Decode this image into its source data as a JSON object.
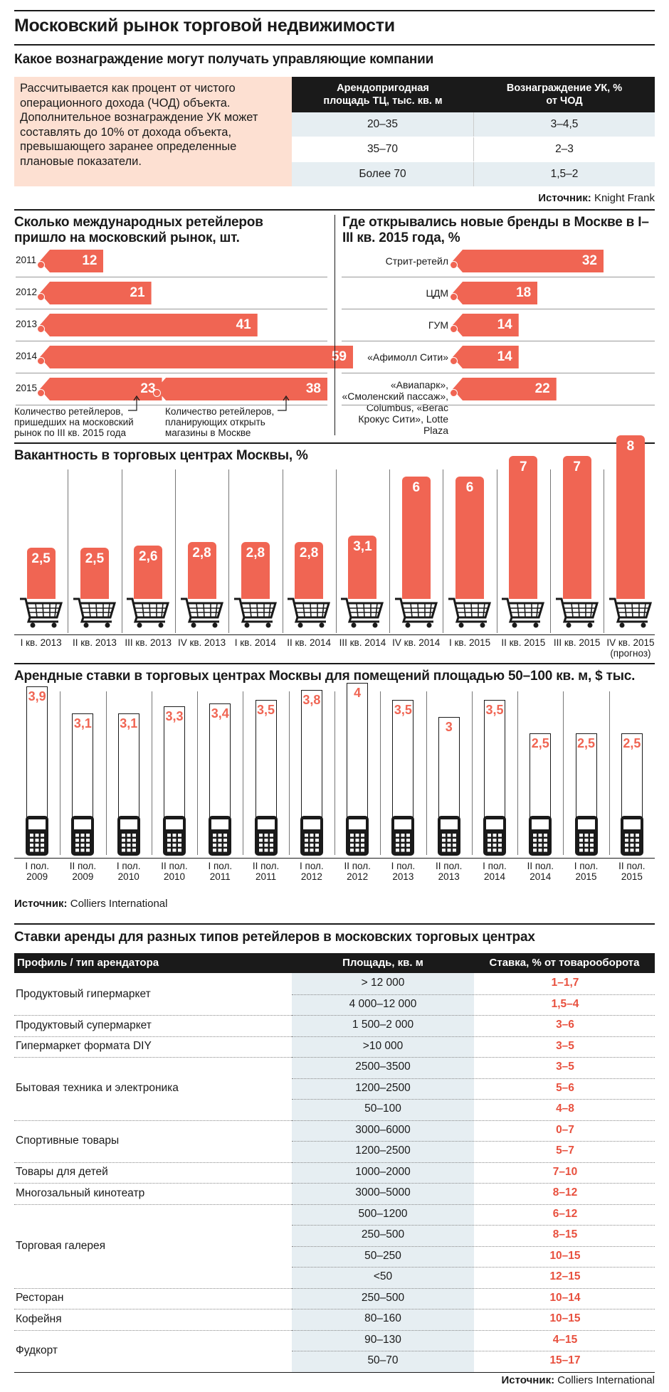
{
  "title": "Московский рынок торговой недвижимости",
  "section1": {
    "title": "Какое вознаграждение могут получать управляющие компании",
    "description": "Рассчитывается как процент от чистого операционного дохода (ЧОД) объекта. Дополнительное вознаграждение УК может составлять до 10% от дохода объекта, превышающего заранее определенные плановые показатели.",
    "col1": "Арендопригодная площадь ТЦ, тыс. кв. м",
    "col2": "Вознаграждение УК, % от ЧОД",
    "rows": [
      {
        "area": "20–35",
        "fee": "3–4,5"
      },
      {
        "area": "35–70",
        "fee": "2–3"
      },
      {
        "area": "Более 70",
        "fee": "1,5–2"
      }
    ],
    "source_label": "Источник:",
    "source": "Knight Frank"
  },
  "accent_color": "#f06553",
  "retailers": {
    "title": "Сколько международных ретейлеров пришло на московский рынок, шт.",
    "note1": "Количество ретейлеров, пришедших на московский рынок по III кв. 2015 года",
    "note2": "Количество ретейлеров, планирующих открыть магазины в Москве"
  },
  "brands": {
    "title": "Где открывались новые бренды в Москве в I–III кв. 2015 года, %"
  },
  "vacancy": {
    "title": "Вакантность в торговых центрах Москвы, %"
  },
  "rents": {
    "title": "Арендные ставки в торговых центрах Москвы для помещений площадью 50–100 кв. м, $ тыс.",
    "source_label": "Источник:",
    "source": "Colliers International"
  },
  "chart_data": [
    {
      "type": "bar",
      "orientation": "horizontal",
      "title": "Сколько международных ретейлеров пришло на московский рынок, шт.",
      "categories": [
        "2011",
        "2012",
        "2013",
        "2014",
        "2015"
      ],
      "series": [
        {
          "name": "Количество ретейлеров, пришедших на московский рынок по III кв. 2015 года",
          "values": [
            12,
            21,
            41,
            59,
            23
          ]
        },
        {
          "name": "Количество ретейлеров, планирующих открыть магазины в Москве",
          "values": [
            null,
            null,
            null,
            null,
            38
          ]
        }
      ]
    },
    {
      "type": "bar",
      "orientation": "horizontal",
      "title": "Где открывались новые бренды в Москве в I–III кв. 2015 года, %",
      "categories": [
        "Стрит-ретейл",
        "ЦДМ",
        "ГУМ",
        "«Афимолл Сити»",
        "«Авиапарк», «Смоленский пассаж», Columbus, «Вегас Крокус Сити», Lotte Plaza"
      ],
      "values": [
        32,
        18,
        14,
        14,
        22
      ],
      "value_labels": [
        "32",
        "18",
        "14",
        "14",
        "22"
      ]
    },
    {
      "type": "bar",
      "title": "Вакантность в торговых центрах Москвы, %",
      "categories": [
        "I кв. 2013",
        "II кв. 2013",
        "III кв. 2013",
        "IV кв. 2013",
        "I кв. 2014",
        "II кв. 2014",
        "III кв. 2014",
        "IV кв. 2014",
        "I кв. 2015",
        "II кв. 2015",
        "III кв. 2015",
        "IV кв. 2015 (прогноз)"
      ],
      "values": [
        2.5,
        2.5,
        2.6,
        2.8,
        2.8,
        2.8,
        3.1,
        6,
        6,
        7,
        7,
        8
      ],
      "value_labels": [
        "2,5",
        "2,5",
        "2,6",
        "2,8",
        "2,8",
        "2,8",
        "3,1",
        "6",
        "6",
        "7",
        "7",
        "8"
      ]
    },
    {
      "type": "bar",
      "title": "Арендные ставки в торговых центрах Москвы для помещений площадью 50–100 кв. м, $ тыс.",
      "categories": [
        "I пол. 2009",
        "II пол. 2009",
        "I пол. 2010",
        "II пол. 2010",
        "I пол. 2011",
        "II пол. 2011",
        "I пол. 2012",
        "II пол. 2012",
        "I пол. 2013",
        "II пол. 2013",
        "I пол. 2014",
        "II пол. 2014",
        "I пол. 2015",
        "II пол. 2015"
      ],
      "values": [
        3.9,
        3.1,
        3.1,
        3.3,
        3.4,
        3.5,
        3.8,
        4,
        3.5,
        3,
        3.5,
        2.5,
        2.5,
        2.5
      ],
      "value_labels": [
        "3,9",
        "3,1",
        "3,1",
        "3,3",
        "3,4",
        "3,5",
        "3,8",
        "4",
        "3,5",
        "3",
        "3,5",
        "2,5",
        "2,5",
        "2,5"
      ]
    },
    {
      "type": "table",
      "title": "Ставки аренды для разных типов ретейлеров в московских торговых центрах",
      "columns": [
        "Профиль / тип арендатора",
        "Площадь, кв. м",
        "Ставка, % от товарооборота"
      ],
      "rows": [
        [
          "Продуктовый гипермаркет",
          "> 12 000",
          "1–1,7"
        ],
        [
          "",
          "4 000–12 000",
          "1,5–4"
        ],
        [
          "Продуктовый супермаркет",
          "1 500–2 000",
          "3–6"
        ],
        [
          "Гипермаркет формата DIY",
          ">10 000",
          "3–5"
        ],
        [
          "Бытовая техника и электроника",
          "2500–3500",
          "3–5"
        ],
        [
          "",
          "1200–2500",
          "5–6"
        ],
        [
          "",
          "50–100",
          "4–8"
        ],
        [
          "Спортивные товары",
          "3000–6000",
          "0–7"
        ],
        [
          "",
          "1200–2500",
          "5–7"
        ],
        [
          "Товары для детей",
          "1000–2000",
          "7–10"
        ],
        [
          "Многозальный кинотеатр",
          "3000–5000",
          "8–12"
        ],
        [
          "Торговая галерея",
          "500–1200",
          "6–12"
        ],
        [
          "",
          "250–500",
          "8–15"
        ],
        [
          "",
          "50–250",
          "10–15"
        ],
        [
          "",
          "<50",
          "12–15"
        ],
        [
          "Ресторан",
          "250–500",
          "10–14"
        ],
        [
          "Кофейня",
          "80–160",
          "10–15"
        ],
        [
          "Фудкорт",
          "90–130",
          "4–15"
        ],
        [
          "",
          "50–70",
          "15–17"
        ]
      ],
      "source_label": "Источник:",
      "source": "Colliers International"
    }
  ]
}
